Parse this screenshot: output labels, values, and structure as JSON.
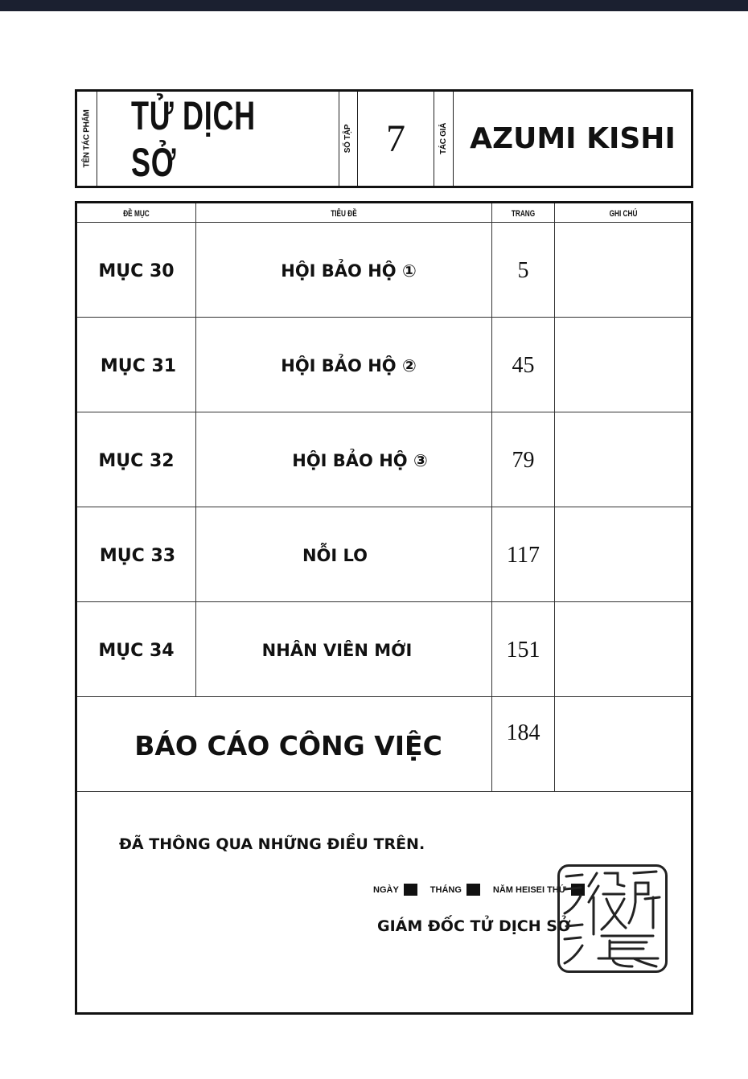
{
  "header": {
    "work_label": "TÊN TÁC PHẨM",
    "work_title": "TỬ DỊCH SỞ",
    "volume_label": "SỐ TẬP",
    "volume": "7",
    "author_label": "TÁC GIẢ",
    "author": "AZUMI KISHI"
  },
  "table": {
    "columns": [
      "ĐỀ MỤC",
      "TIÊU ĐỀ",
      "TRANG",
      "GHI CHÚ"
    ],
    "rows": [
      {
        "chapter": "MỤC 30",
        "title": "HỘI BẢO HỘ ①",
        "page": "5",
        "note": ""
      },
      {
        "chapter": "MỤC 31",
        "title": "HỘI BẢO HỘ ②",
        "page": "45",
        "note": ""
      },
      {
        "chapter": "MỤC 32",
        "title": "HỘI BẢO HỘ ③",
        "page": "79",
        "note": ""
      },
      {
        "chapter": "MỤC 33",
        "title": "NỖI LO",
        "page": "117",
        "note": ""
      },
      {
        "chapter": "MỤC 34",
        "title": "NHÂN VIÊN MỚI",
        "page": "151",
        "note": ""
      }
    ],
    "extra": {
      "title": "BÁO CÁO CÔNG VIỆC",
      "page": "184"
    }
  },
  "footer": {
    "approved": "ĐÃ THÔNG QUA NHỮNG ĐIỀU TRÊN.",
    "day_label": "NGÀY",
    "month_label": "THÁNG",
    "year_label": "NĂM HEISEI THỨ",
    "signature": "GIÁM ĐỐC TỬ DỊCH SỞ",
    "seal_text": "役所長"
  }
}
